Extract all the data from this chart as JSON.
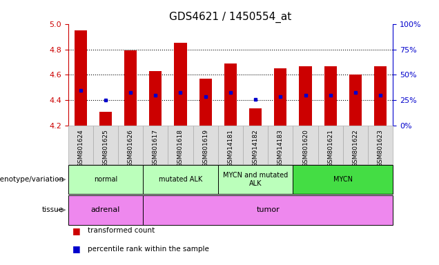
{
  "title": "GDS4621 / 1450554_at",
  "samples": [
    "GSM801624",
    "GSM801625",
    "GSM801626",
    "GSM801617",
    "GSM801618",
    "GSM801619",
    "GSM914181",
    "GSM914182",
    "GSM914183",
    "GSM801620",
    "GSM801621",
    "GSM801622",
    "GSM801623"
  ],
  "bar_values": [
    4.95,
    4.31,
    4.79,
    4.63,
    4.85,
    4.57,
    4.69,
    4.34,
    4.65,
    4.67,
    4.67,
    4.6,
    4.67
  ],
  "percentile_values": [
    4.48,
    4.4,
    4.46,
    4.44,
    4.46,
    4.43,
    4.46,
    4.41,
    4.43,
    4.44,
    4.44,
    4.46,
    4.44
  ],
  "ymin": 4.2,
  "ymax": 5.0,
  "yticks": [
    4.2,
    4.4,
    4.6,
    4.8,
    5.0
  ],
  "right_yticks": [
    0,
    25,
    50,
    75,
    100
  ],
  "bar_color": "#cc0000",
  "percentile_color": "#0000cc",
  "bar_width": 0.5,
  "genotype_groups": [
    {
      "label": "normal",
      "start": 0,
      "end": 3,
      "color": "#bbffbb"
    },
    {
      "label": "mutated ALK",
      "start": 3,
      "end": 6,
      "color": "#bbffbb"
    },
    {
      "label": "MYCN and mutated\nALK",
      "start": 6,
      "end": 9,
      "color": "#bbffbb"
    },
    {
      "label": "MYCN",
      "start": 9,
      "end": 13,
      "color": "#44dd44"
    }
  ],
  "tissue_groups": [
    {
      "label": "adrenal",
      "start": 0,
      "end": 3,
      "color": "#ee88ee"
    },
    {
      "label": "tumor",
      "start": 3,
      "end": 13,
      "color": "#ee88ee"
    }
  ],
  "legend_items": [
    {
      "label": "transformed count",
      "color": "#cc0000"
    },
    {
      "label": "percentile rank within the sample",
      "color": "#0000cc"
    }
  ],
  "left_axis_color": "#cc0000",
  "right_axis_color": "#0000cc",
  "genotype_row_label": "genotype/variation",
  "tissue_row_label": "tissue",
  "sample_box_color": "#dddddd",
  "grid_yticks": [
    4.4,
    4.6,
    4.8
  ]
}
